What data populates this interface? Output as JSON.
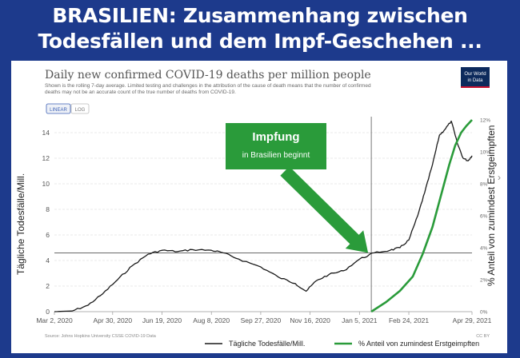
{
  "headline": {
    "line1": "BRASILIEN: Zusammenhang zwischen",
    "line2": "Todesfällen und dem Impf-Geschehen ..."
  },
  "logo": {
    "line1": "Our World",
    "line2": "in Data"
  },
  "toggle": {
    "linear": "LINEAR",
    "log": "LOG"
  },
  "chart_data": {
    "type": "line",
    "title": "Daily new confirmed COVID-19 deaths per million people",
    "subtitle_line1": "Shown is the rolling 7-day average. Limited testing and challenges in the attribution of the cause of death means that the number of confirmed",
    "subtitle_line2": "deaths may not be an accurate count of the true number of deaths from COVID-19.",
    "ylabel_left": "Tägliche Todesfälle/Mill.",
    "ylabel_right": "% Anteil von zumindest Erstgeimpften",
    "ylim": [
      0,
      15
    ],
    "ylim_right": [
      0,
      12
    ],
    "yticks": [
      "0",
      "2",
      "4",
      "6",
      "8",
      "10",
      "12",
      "14"
    ],
    "yticks_right": [
      "0%",
      "2%",
      "4%",
      "6%",
      "8%",
      "10%",
      "12%"
    ],
    "xticks": [
      "Mar 2, 2020",
      "Apr 30, 2020",
      "Jun 19, 2020",
      "Aug 8, 2020",
      "Sep 27, 2020",
      "Nov 16, 2020",
      "Jan 5, 2021",
      "Feb 24, 2021",
      "Apr 29, 2021"
    ],
    "source": "Source: Johns Hopkins University CSSE COVID-19 Data",
    "license": "CC BY",
    "annotation": {
      "title": "Impfung",
      "text": "in Brasilien beginnt",
      "date": "2021-01-17"
    },
    "series": [
      {
        "name": "Tägliche Todesfälle/Mill.",
        "color": "#1a1a1a",
        "points": [
          [
            "2020-03-02",
            0
          ],
          [
            "2020-03-20",
            0.05
          ],
          [
            "2020-04-05",
            0.5
          ],
          [
            "2020-04-20",
            1.4
          ],
          [
            "2020-05-05",
            2.5
          ],
          [
            "2020-05-20",
            3.6
          ],
          [
            "2020-06-05",
            4.5
          ],
          [
            "2020-06-19",
            4.8
          ],
          [
            "2020-07-05",
            4.7
          ],
          [
            "2020-07-20",
            4.85
          ],
          [
            "2020-08-08",
            4.8
          ],
          [
            "2020-08-20",
            4.6
          ],
          [
            "2020-09-05",
            4.1
          ],
          [
            "2020-09-27",
            3.5
          ],
          [
            "2020-10-15",
            2.7
          ],
          [
            "2020-11-01",
            2.2
          ],
          [
            "2020-11-12",
            1.6
          ],
          [
            "2020-11-22",
            2.4
          ],
          [
            "2020-12-05",
            2.9
          ],
          [
            "2020-12-20",
            3.2
          ],
          [
            "2021-01-05",
            4.1
          ],
          [
            "2021-01-20",
            4.6
          ],
          [
            "2021-02-05",
            4.8
          ],
          [
            "2021-02-15",
            5.0
          ],
          [
            "2021-02-24",
            5.6
          ],
          [
            "2021-03-05",
            7.5
          ],
          [
            "2021-03-12",
            9.3
          ],
          [
            "2021-03-20",
            11.5
          ],
          [
            "2021-03-27",
            13.8
          ],
          [
            "2021-04-01",
            14.2
          ],
          [
            "2021-04-08",
            14.9
          ],
          [
            "2021-04-14",
            13.2
          ],
          [
            "2021-04-20",
            12.0
          ],
          [
            "2021-04-25",
            11.8
          ],
          [
            "2021-04-29",
            12.2
          ]
        ]
      },
      {
        "name": "% Anteil von zumindest Erstgeimpften",
        "color": "#2a9b3a",
        "points": [
          [
            "2021-01-17",
            0
          ],
          [
            "2021-02-01",
            0.6
          ],
          [
            "2021-02-15",
            1.3
          ],
          [
            "2021-02-28",
            2.2
          ],
          [
            "2021-03-10",
            3.6
          ],
          [
            "2021-03-20",
            5.3
          ],
          [
            "2021-03-30",
            7.6
          ],
          [
            "2021-04-06",
            9.2
          ],
          [
            "2021-04-12",
            10.4
          ],
          [
            "2021-04-18",
            11.2
          ],
          [
            "2021-04-23",
            11.6
          ],
          [
            "2021-04-29",
            12.0
          ]
        ]
      }
    ]
  }
}
